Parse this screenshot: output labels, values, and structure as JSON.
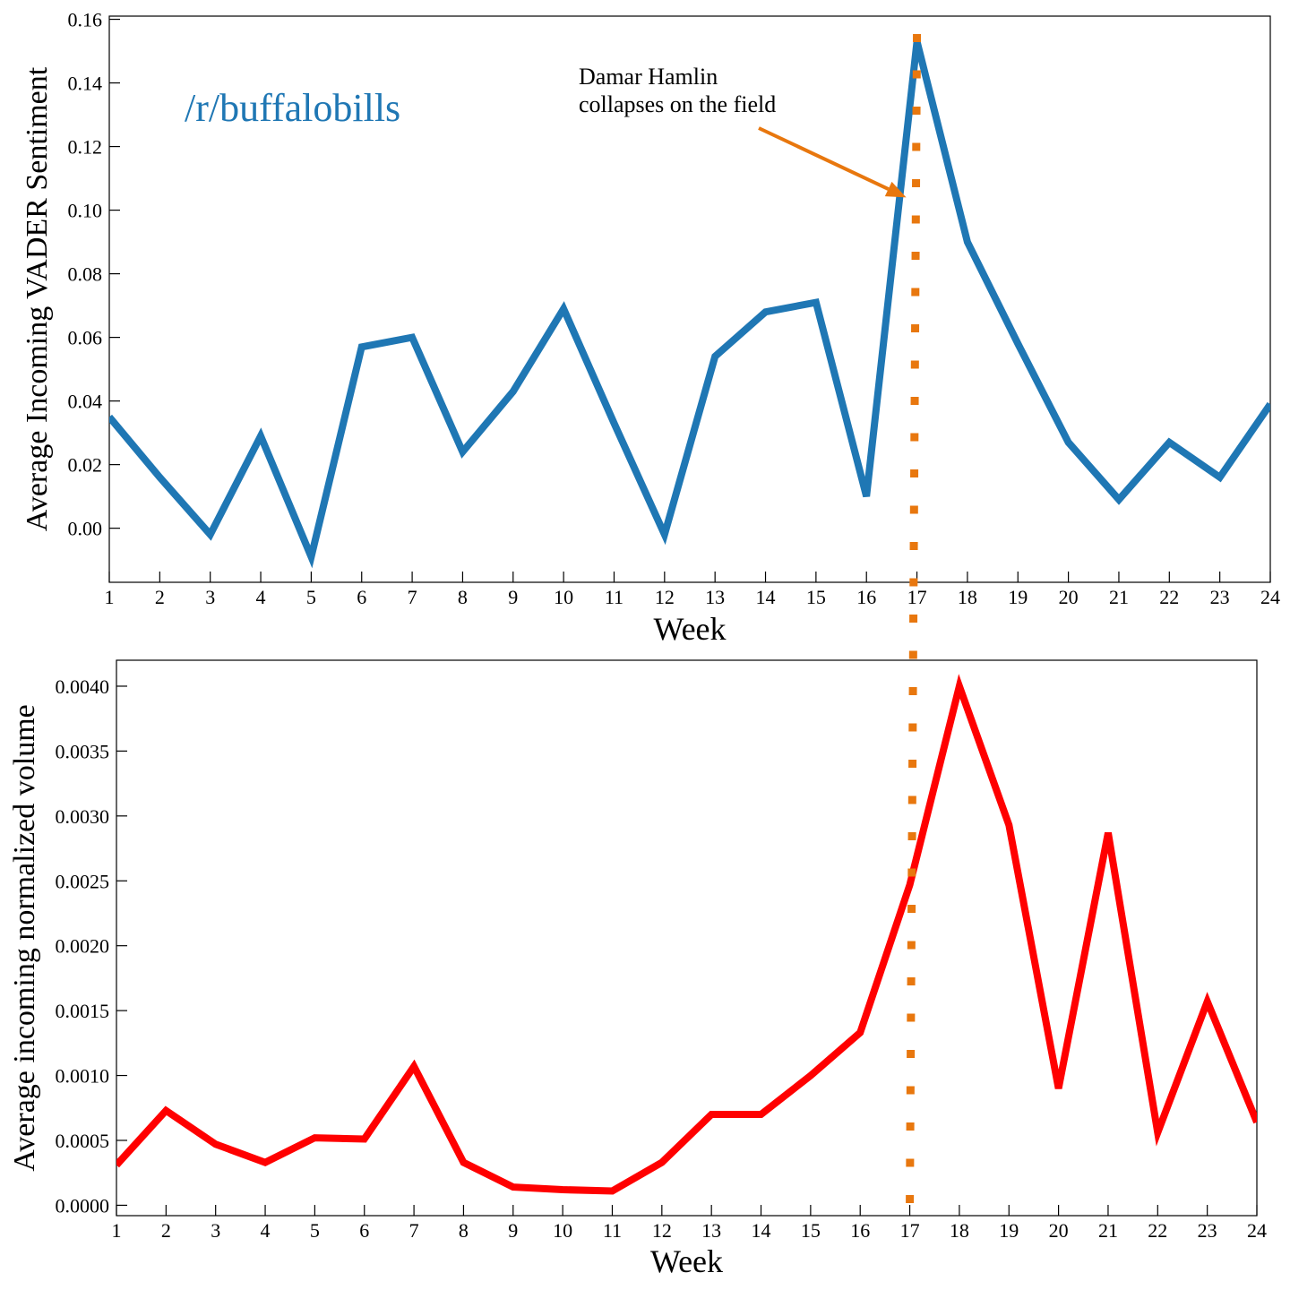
{
  "chart_data": [
    {
      "type": "line",
      "subreddit_label": "/r/buffalobills",
      "xlabel": "Week",
      "ylabel": "Average Incoming VADER Sentiment",
      "x": [
        1,
        2,
        3,
        4,
        5,
        6,
        7,
        8,
        9,
        10,
        11,
        12,
        13,
        14,
        15,
        16,
        17,
        18,
        19,
        20,
        21,
        22,
        23,
        24
      ],
      "x_ticks": [
        "1",
        "2",
        "3",
        "4",
        "5",
        "6",
        "7",
        "8",
        "9",
        "10",
        "11",
        "12",
        "13",
        "14",
        "15",
        "16",
        "17",
        "18",
        "19",
        "20",
        "21",
        "22",
        "23",
        "24"
      ],
      "y_ticks": [
        "0.00",
        "0.02",
        "0.04",
        "0.06",
        "0.08",
        "0.10",
        "0.12",
        "0.14",
        "0.16"
      ],
      "xlim": [
        1,
        24
      ],
      "ylim": [
        -0.017,
        0.161
      ],
      "series": [
        {
          "color": "#1f77b4",
          "values": [
            0.035,
            0.016,
            -0.002,
            0.029,
            -0.009,
            0.057,
            0.06,
            0.024,
            0.043,
            0.069,
            0.033,
            -0.002,
            0.054,
            0.068,
            0.071,
            0.01,
            0.153,
            0.09,
            0.058,
            0.027,
            0.009,
            0.027,
            0.016,
            0.039
          ]
        }
      ],
      "annotation": {
        "line1": "Damar Hamlin",
        "line2": "collapses on the field",
        "target_x": 17,
        "target_y": 0.104,
        "color": "#e8770e"
      },
      "vline": {
        "x": 17,
        "color": "#e8770e",
        "style": "dotted"
      }
    },
    {
      "type": "line",
      "xlabel": "Week",
      "ylabel": "Average incoming normalized volume",
      "x": [
        1,
        2,
        3,
        4,
        5,
        6,
        7,
        8,
        9,
        10,
        11,
        12,
        13,
        14,
        15,
        16,
        17,
        18,
        19,
        20,
        21,
        22,
        23,
        24
      ],
      "x_ticks": [
        "1",
        "2",
        "3",
        "4",
        "5",
        "6",
        "7",
        "8",
        "9",
        "10",
        "11",
        "12",
        "13",
        "14",
        "15",
        "16",
        "17",
        "18",
        "19",
        "20",
        "21",
        "22",
        "23",
        "24"
      ],
      "y_ticks": [
        "0.0000",
        "0.0005",
        "0.0010",
        "0.0015",
        "0.0020",
        "0.0025",
        "0.0030",
        "0.0035",
        "0.0040"
      ],
      "xlim": [
        1,
        24
      ],
      "ylim": [
        -8e-05,
        0.0042
      ],
      "series": [
        {
          "color": "#ff0000",
          "values": [
            0.00031,
            0.00073,
            0.00047,
            0.00033,
            0.00052,
            0.00051,
            0.00107,
            0.00033,
            0.00014,
            0.00012,
            0.00011,
            0.00033,
            0.0007,
            0.0007,
            0.001,
            0.00133,
            0.00247,
            0.004,
            0.00293,
            0.0009,
            0.00287,
            0.00056,
            0.00157,
            0.00064
          ]
        }
      ],
      "vline": {
        "x": 17,
        "color": "#e8770e",
        "style": "dotted"
      }
    }
  ]
}
